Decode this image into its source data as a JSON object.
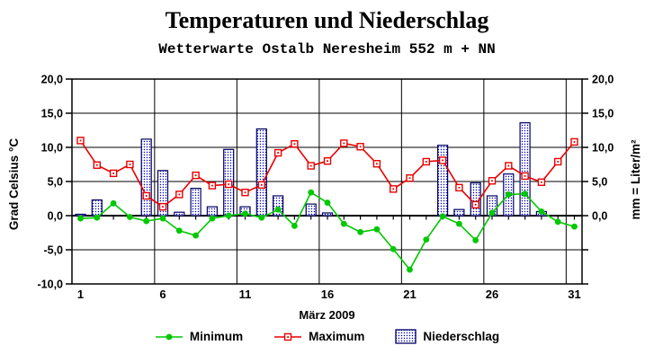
{
  "header": {
    "title": "Temperaturen und Niederschlag",
    "subtitle": "Wetterwarte Ostalb Neresheim 552 m + NN"
  },
  "chart_data": {
    "type": "combo",
    "title": "Temperaturen und Niederschlag",
    "subtitle": "Wetterwarte Ostalb Neresheim 552 m + NN",
    "xlabel": "März 2009",
    "ylabel_left": "Grad Celsius °C",
    "ylabel_right": "mm = Liter/m²",
    "x": [
      1,
      2,
      3,
      4,
      5,
      6,
      7,
      8,
      9,
      10,
      11,
      12,
      13,
      14,
      15,
      16,
      17,
      18,
      19,
      20,
      21,
      22,
      23,
      24,
      25,
      26,
      27,
      28,
      29,
      30,
      31
    ],
    "xticks": [
      1,
      6,
      11,
      16,
      21,
      26,
      31
    ],
    "ylim": [
      -10,
      20
    ],
    "yticks_left": [
      20,
      15,
      10,
      5,
      0,
      -5,
      -10
    ],
    "yticks_right_labeled": [
      20,
      15,
      10,
      5,
      0
    ],
    "yticks_right_all": [
      20,
      15,
      10,
      5,
      0,
      -5,
      -10
    ],
    "v_gridlines_at": [
      5.5,
      10.5,
      15.5,
      20.5,
      25.5,
      30.5
    ],
    "decimal_separator": ",",
    "grid": true,
    "legend_position": "bottom",
    "colors": {
      "minimum": "#00c800",
      "maximum": "#e80000",
      "bar_dot": "#0000b4",
      "bar_border": "#000066",
      "axis": "#000000",
      "background": "#ffffff"
    },
    "series": [
      {
        "name": "Minimum",
        "type": "line",
        "marker": "filled-circle",
        "color": "#00c800",
        "values": [
          -0.4,
          -0.3,
          1.8,
          -0.2,
          -0.8,
          -0.4,
          -2.2,
          -2.9,
          -0.4,
          0.0,
          0.3,
          -0.3,
          0.9,
          -1.5,
          3.4,
          1.9,
          -1.2,
          -2.4,
          -2.0,
          -4.9,
          -7.9,
          -3.5,
          -0.1,
          -1.2,
          -3.6,
          0.4,
          3.1,
          3.2,
          0.6,
          -0.9,
          -1.6
        ]
      },
      {
        "name": "Maximum",
        "type": "line",
        "marker": "open-square",
        "color": "#e80000",
        "values": [
          11.0,
          7.4,
          6.2,
          7.5,
          2.9,
          1.3,
          3.1,
          5.9,
          4.4,
          4.6,
          3.4,
          4.5,
          9.2,
          10.5,
          7.3,
          8.0,
          10.6,
          10.1,
          7.6,
          3.9,
          5.5,
          7.9,
          8.1,
          4.1,
          1.6,
          5.1,
          7.3,
          5.8,
          4.9,
          7.9,
          10.8
        ]
      },
      {
        "name": "Niederschlag",
        "type": "bar",
        "fill": "dot-pattern",
        "values": [
          0.2,
          2.3,
          0,
          0,
          11.2,
          6.6,
          0.5,
          4.0,
          1.3,
          9.7,
          1.3,
          12.7,
          2.9,
          0,
          1.7,
          0.4,
          0,
          0,
          0,
          0,
          0,
          0,
          10.3,
          0.9,
          4.8,
          2.9,
          6.1,
          13.6,
          0.6,
          0,
          0
        ]
      }
    ]
  }
}
